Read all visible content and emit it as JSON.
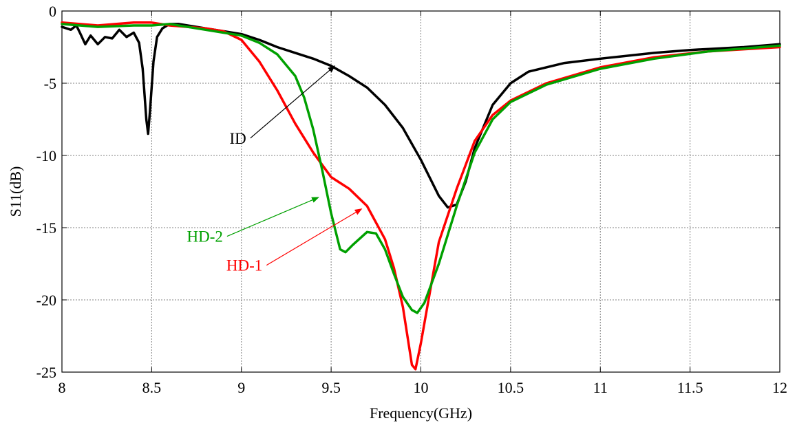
{
  "chart_data": {
    "type": "line",
    "title": "",
    "xlabel": "Frequency(GHz)",
    "ylabel": "S11(dB)",
    "xlim": [
      8,
      12
    ],
    "ylim": [
      -25,
      0
    ],
    "xticks": [
      "8",
      "8.5",
      "9",
      "9.5",
      "10",
      "10.5",
      "11",
      "11.5",
      "12"
    ],
    "yticks": [
      "0",
      "-5",
      "-10",
      "-15",
      "-20",
      "-25"
    ],
    "grid": true,
    "legend": "none",
    "series": [
      {
        "name": "ID",
        "color": "#000000",
        "points": [
          [
            8.0,
            -1.1
          ],
          [
            8.05,
            -1.3
          ],
          [
            8.08,
            -1.0
          ],
          [
            8.1,
            -1.5
          ],
          [
            8.13,
            -2.3
          ],
          [
            8.16,
            -1.7
          ],
          [
            8.2,
            -2.3
          ],
          [
            8.24,
            -1.8
          ],
          [
            8.28,
            -1.9
          ],
          [
            8.32,
            -1.3
          ],
          [
            8.36,
            -1.8
          ],
          [
            8.4,
            -1.5
          ],
          [
            8.43,
            -2.2
          ],
          [
            8.45,
            -4.0
          ],
          [
            8.47,
            -7.5
          ],
          [
            8.48,
            -8.5
          ],
          [
            8.49,
            -7.0
          ],
          [
            8.51,
            -3.5
          ],
          [
            8.53,
            -1.8
          ],
          [
            8.56,
            -1.2
          ],
          [
            8.6,
            -0.9
          ],
          [
            8.65,
            -0.9
          ],
          [
            8.7,
            -1.0
          ],
          [
            8.8,
            -1.2
          ],
          [
            8.9,
            -1.4
          ],
          [
            9.0,
            -1.6
          ],
          [
            9.1,
            -2.0
          ],
          [
            9.2,
            -2.5
          ],
          [
            9.3,
            -2.9
          ],
          [
            9.4,
            -3.3
          ],
          [
            9.5,
            -3.8
          ],
          [
            9.6,
            -4.5
          ],
          [
            9.7,
            -5.3
          ],
          [
            9.8,
            -6.5
          ],
          [
            9.9,
            -8.1
          ],
          [
            10.0,
            -10.3
          ],
          [
            10.1,
            -12.8
          ],
          [
            10.15,
            -13.6
          ],
          [
            10.2,
            -13.4
          ],
          [
            10.25,
            -11.8
          ],
          [
            10.3,
            -9.5
          ],
          [
            10.4,
            -6.5
          ],
          [
            10.5,
            -5.0
          ],
          [
            10.6,
            -4.2
          ],
          [
            10.8,
            -3.6
          ],
          [
            11.0,
            -3.3
          ],
          [
            11.3,
            -2.9
          ],
          [
            11.5,
            -2.7
          ],
          [
            11.8,
            -2.5
          ],
          [
            12.0,
            -2.3
          ]
        ]
      },
      {
        "name": "HD-1",
        "color": "#ff0000",
        "points": [
          [
            8.0,
            -0.8
          ],
          [
            8.2,
            -1.0
          ],
          [
            8.4,
            -0.8
          ],
          [
            8.5,
            -0.8
          ],
          [
            8.6,
            -1.0
          ],
          [
            8.8,
            -1.2
          ],
          [
            8.9,
            -1.4
          ],
          [
            9.0,
            -2.0
          ],
          [
            9.1,
            -3.5
          ],
          [
            9.2,
            -5.5
          ],
          [
            9.3,
            -7.8
          ],
          [
            9.4,
            -9.8
          ],
          [
            9.5,
            -11.5
          ],
          [
            9.6,
            -12.3
          ],
          [
            9.7,
            -13.5
          ],
          [
            9.8,
            -15.8
          ],
          [
            9.85,
            -17.8
          ],
          [
            9.9,
            -20.5
          ],
          [
            9.95,
            -24.5
          ],
          [
            9.97,
            -24.8
          ],
          [
            10.0,
            -23.0
          ],
          [
            10.05,
            -19.5
          ],
          [
            10.1,
            -16.0
          ],
          [
            10.2,
            -12.3
          ],
          [
            10.3,
            -9.0
          ],
          [
            10.4,
            -7.2
          ],
          [
            10.5,
            -6.2
          ],
          [
            10.7,
            -5.0
          ],
          [
            11.0,
            -3.9
          ],
          [
            11.3,
            -3.2
          ],
          [
            11.6,
            -2.8
          ],
          [
            12.0,
            -2.5
          ]
        ]
      },
      {
        "name": "HD-2",
        "color": "#00a000",
        "points": [
          [
            8.0,
            -0.9
          ],
          [
            8.2,
            -1.1
          ],
          [
            8.4,
            -1.0
          ],
          [
            8.5,
            -1.0
          ],
          [
            8.6,
            -0.9
          ],
          [
            8.8,
            -1.3
          ],
          [
            8.9,
            -1.5
          ],
          [
            9.0,
            -1.7
          ],
          [
            9.1,
            -2.2
          ],
          [
            9.2,
            -3.0
          ],
          [
            9.3,
            -4.5
          ],
          [
            9.35,
            -6.0
          ],
          [
            9.4,
            -8.2
          ],
          [
            9.45,
            -11.0
          ],
          [
            9.5,
            -14.0
          ],
          [
            9.55,
            -16.5
          ],
          [
            9.58,
            -16.7
          ],
          [
            9.62,
            -16.2
          ],
          [
            9.7,
            -15.3
          ],
          [
            9.75,
            -15.4
          ],
          [
            9.8,
            -16.5
          ],
          [
            9.85,
            -18.2
          ],
          [
            9.9,
            -19.8
          ],
          [
            9.95,
            -20.7
          ],
          [
            9.98,
            -20.9
          ],
          [
            10.02,
            -20.2
          ],
          [
            10.1,
            -17.5
          ],
          [
            10.2,
            -13.5
          ],
          [
            10.3,
            -9.8
          ],
          [
            10.4,
            -7.5
          ],
          [
            10.5,
            -6.3
          ],
          [
            10.7,
            -5.1
          ],
          [
            11.0,
            -4.0
          ],
          [
            11.3,
            -3.3
          ],
          [
            11.6,
            -2.8
          ],
          [
            12.0,
            -2.4
          ]
        ]
      }
    ],
    "annotations": [
      {
        "label": "ID",
        "color": "#000000",
        "from": [
          9.05,
          -8.8
        ],
        "to": [
          9.52,
          -3.8
        ]
      },
      {
        "label": "HD-2",
        "color": "#00a000",
        "from": [
          8.92,
          -15.6
        ],
        "to": [
          9.43,
          -12.9
        ]
      },
      {
        "label": "HD-1",
        "color": "#ff0000",
        "from": [
          9.14,
          -17.6
        ],
        "to": [
          9.67,
          -13.7
        ]
      }
    ]
  }
}
